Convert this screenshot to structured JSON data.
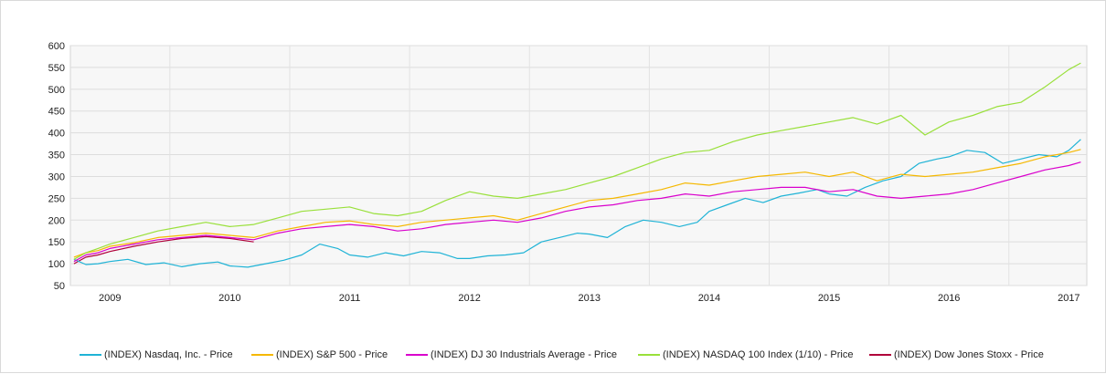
{
  "chart_data": {
    "type": "line",
    "title": "",
    "xlabel": "",
    "ylabel": "",
    "xlim": [
      2008.67,
      2017.15
    ],
    "ylim": [
      50,
      600
    ],
    "y_ticks": [
      50,
      100,
      150,
      200,
      250,
      300,
      350,
      400,
      450,
      500,
      550,
      600
    ],
    "x_tick_labels": [
      "2009",
      "2010",
      "2011",
      "2012",
      "2013",
      "2014",
      "2015",
      "2016",
      "2017"
    ],
    "x_tick_positions": [
      2009,
      2010,
      2011,
      2012,
      2013,
      2014,
      2015,
      2016,
      2017
    ],
    "grid": true,
    "legend_position": "bottom",
    "series": [
      {
        "name": "(INDEX) Nasdaq, Inc. - Price",
        "color": "#1fb3d6",
        "x": [
          2008.7,
          2008.8,
          2008.9,
          2009.0,
          2009.15,
          2009.3,
          2009.45,
          2009.6,
          2009.75,
          2009.9,
          2010.0,
          2010.15,
          2010.3,
          2010.45,
          2010.6,
          2010.75,
          2010.9,
          2011.0,
          2011.15,
          2011.3,
          2011.45,
          2011.6,
          2011.75,
          2011.9,
          2012.0,
          2012.15,
          2012.3,
          2012.45,
          2012.6,
          2012.75,
          2012.9,
          2013.0,
          2013.15,
          2013.3,
          2013.45,
          2013.6,
          2013.75,
          2013.9,
          2014.0,
          2014.15,
          2014.3,
          2014.45,
          2014.6,
          2014.75,
          2014.9,
          2015.0,
          2015.15,
          2015.3,
          2015.45,
          2015.6,
          2015.75,
          2015.9,
          2016.0,
          2016.15,
          2016.3,
          2016.45,
          2016.6,
          2016.75,
          2016.9,
          2017.0,
          2017.1
        ],
        "values": [
          110,
          98,
          100,
          105,
          110,
          98,
          102,
          93,
          100,
          104,
          95,
          92,
          100,
          108,
          120,
          145,
          135,
          120,
          115,
          125,
          118,
          128,
          125,
          112,
          112,
          118,
          120,
          125,
          150,
          160,
          170,
          168,
          160,
          185,
          200,
          195,
          185,
          195,
          220,
          235,
          250,
          240,
          255,
          262,
          270,
          260,
          255,
          275,
          290,
          300,
          330,
          340,
          345,
          360,
          355,
          330,
          340,
          350,
          345,
          360,
          385
        ]
      },
      {
        "name": "(INDEX) S&P 500 - Price",
        "color": "#f5b800",
        "x": [
          2008.7,
          2008.8,
          2008.9,
          2009.0,
          2009.2,
          2009.4,
          2009.6,
          2009.8,
          2010.0,
          2010.2,
          2010.4,
          2010.6,
          2010.8,
          2011.0,
          2011.2,
          2011.4,
          2011.6,
          2011.8,
          2012.0,
          2012.2,
          2012.4,
          2012.6,
          2012.8,
          2013.0,
          2013.2,
          2013.4,
          2013.6,
          2013.8,
          2014.0,
          2014.2,
          2014.4,
          2014.6,
          2014.8,
          2015.0,
          2015.2,
          2015.4,
          2015.6,
          2015.8,
          2016.0,
          2016.2,
          2016.4,
          2016.6,
          2016.8,
          2017.0,
          2017.1
        ],
        "values": [
          115,
          125,
          130,
          140,
          148,
          160,
          165,
          170,
          165,
          160,
          175,
          185,
          195,
          198,
          190,
          185,
          195,
          200,
          205,
          210,
          200,
          215,
          230,
          245,
          250,
          260,
          270,
          285,
          280,
          290,
          300,
          305,
          310,
          300,
          310,
          290,
          305,
          300,
          305,
          310,
          320,
          330,
          345,
          355,
          362
        ]
      },
      {
        "name": "(INDEX) DJ 30 Industrials Average - Price",
        "color": "#d900cc",
        "x": [
          2008.7,
          2008.8,
          2008.9,
          2009.0,
          2009.2,
          2009.4,
          2009.6,
          2009.8,
          2010.0,
          2010.2,
          2010.4,
          2010.6,
          2010.8,
          2011.0,
          2011.2,
          2011.4,
          2011.6,
          2011.8,
          2012.0,
          2012.2,
          2012.4,
          2012.6,
          2012.8,
          2013.0,
          2013.2,
          2013.4,
          2013.6,
          2013.8,
          2014.0,
          2014.2,
          2014.4,
          2014.6,
          2014.8,
          2015.0,
          2015.2,
          2015.4,
          2015.6,
          2015.8,
          2016.0,
          2016.2,
          2016.4,
          2016.6,
          2016.8,
          2017.0,
          2017.1
        ],
        "values": [
          105,
          120,
          125,
          135,
          145,
          155,
          160,
          165,
          160,
          155,
          170,
          180,
          185,
          190,
          185,
          175,
          180,
          190,
          195,
          200,
          195,
          205,
          220,
          230,
          235,
          245,
          250,
          260,
          255,
          265,
          270,
          275,
          275,
          265,
          270,
          255,
          250,
          255,
          260,
          270,
          285,
          300,
          315,
          325,
          333
        ]
      },
      {
        "name": "(INDEX) NASDAQ 100 Index (1/10) - Price",
        "color": "#99e03a",
        "x": [
          2008.7,
          2008.8,
          2008.9,
          2009.0,
          2009.2,
          2009.4,
          2009.6,
          2009.8,
          2010.0,
          2010.2,
          2010.4,
          2010.6,
          2010.8,
          2011.0,
          2011.2,
          2011.4,
          2011.6,
          2011.8,
          2012.0,
          2012.2,
          2012.4,
          2012.6,
          2012.8,
          2013.0,
          2013.2,
          2013.4,
          2013.6,
          2013.8,
          2014.0,
          2014.2,
          2014.4,
          2014.6,
          2014.8,
          2015.0,
          2015.2,
          2015.4,
          2015.6,
          2015.8,
          2016.0,
          2016.2,
          2016.4,
          2016.6,
          2016.8,
          2017.0,
          2017.1
        ],
        "values": [
          110,
          125,
          135,
          145,
          160,
          175,
          185,
          195,
          185,
          190,
          205,
          220,
          225,
          230,
          215,
          210,
          220,
          245,
          265,
          255,
          250,
          260,
          270,
          285,
          300,
          320,
          340,
          355,
          360,
          380,
          395,
          405,
          415,
          425,
          435,
          420,
          440,
          395,
          425,
          440,
          460,
          470,
          505,
          545,
          560
        ]
      },
      {
        "name": "(INDEX) Dow Jones Stoxx - Price",
        "color": "#b0003a",
        "x": [
          2008.7,
          2008.8,
          2008.9,
          2009.0,
          2009.2,
          2009.4,
          2009.6,
          2009.8,
          2010.0,
          2010.2
        ],
        "values": [
          100,
          115,
          120,
          128,
          140,
          150,
          158,
          162,
          158,
          150
        ]
      }
    ]
  }
}
